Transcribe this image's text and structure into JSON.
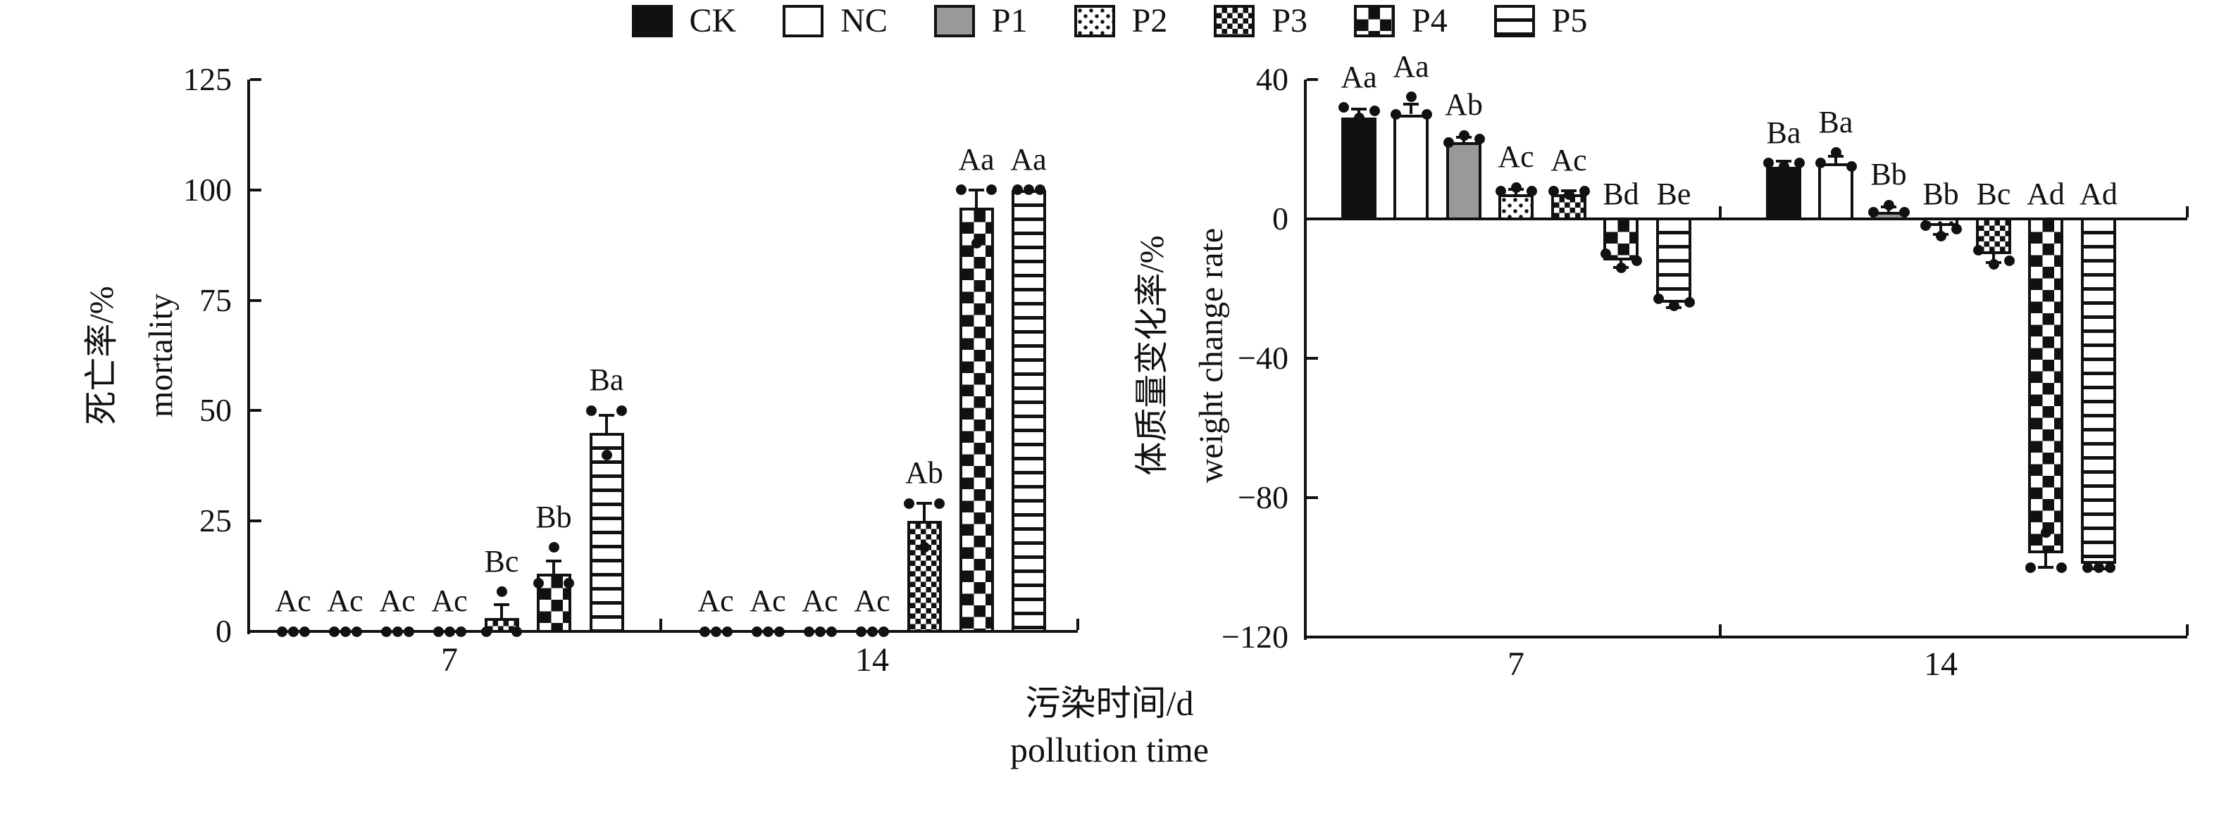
{
  "colors": {
    "ink": "#111111",
    "gray_fill": "#999999",
    "background": "#ffffff"
  },
  "legend": [
    {
      "label": "CK",
      "pattern": "solid-black"
    },
    {
      "label": "NC",
      "pattern": "white"
    },
    {
      "label": "P1",
      "pattern": "solid-gray"
    },
    {
      "label": "P2",
      "pattern": "dots"
    },
    {
      "label": "P3",
      "pattern": "checker-small"
    },
    {
      "label": "P4",
      "pattern": "checker-large"
    },
    {
      "label": "P5",
      "pattern": "hlines"
    }
  ],
  "xaxis": {
    "title_zh": "污染时间/d",
    "title_en": "pollution time"
  },
  "chart_data": [
    {
      "type": "bar",
      "ylabel_zh": "死亡率/%",
      "ylabel_en": "mortality",
      "ylim": [
        0,
        125
      ],
      "yticks": [
        0,
        25,
        50,
        75,
        100,
        125
      ],
      "ytick_labels": [
        "0",
        "25",
        "50",
        "75",
        "100",
        "125"
      ],
      "categories": [
        "7",
        "14"
      ],
      "grid": false,
      "legend_position": "top-center-shared",
      "series": [
        {
          "name": "CK",
          "pattern": "solid-black",
          "values": [
            0,
            0
          ],
          "err": [
            0,
            0
          ],
          "sig": [
            "Ac",
            "Ac"
          ],
          "points": [
            [
              0,
              0,
              0
            ],
            [
              0,
              0,
              0
            ]
          ]
        },
        {
          "name": "NC",
          "pattern": "white",
          "values": [
            0,
            0
          ],
          "err": [
            0,
            0
          ],
          "sig": [
            "Ac",
            "Ac"
          ],
          "points": [
            [
              0,
              0,
              0
            ],
            [
              0,
              0,
              0
            ]
          ]
        },
        {
          "name": "P1",
          "pattern": "solid-gray",
          "values": [
            0,
            0
          ],
          "err": [
            0,
            0
          ],
          "sig": [
            "Ac",
            "Ac"
          ],
          "points": [
            [
              0,
              0,
              0
            ],
            [
              0,
              0,
              0
            ]
          ]
        },
        {
          "name": "P2",
          "pattern": "dots",
          "values": [
            0,
            0
          ],
          "err": [
            0,
            0
          ],
          "sig": [
            "Ac",
            "Ac"
          ],
          "points": [
            [
              0,
              0,
              0
            ],
            [
              0,
              0,
              0
            ]
          ]
        },
        {
          "name": "P3",
          "pattern": "checker-small",
          "values": [
            3,
            25
          ],
          "err": [
            3,
            4
          ],
          "sig": [
            "Bc",
            "Ab"
          ],
          "points": [
            [
              0,
              0,
              9
            ],
            [
              29,
              29,
              19
            ]
          ]
        },
        {
          "name": "P4",
          "pattern": "checker-large",
          "values": [
            13,
            96
          ],
          "err": [
            3,
            4
          ],
          "sig": [
            "Bb",
            "Aa"
          ],
          "points": [
            [
              11,
              11,
              19
            ],
            [
              100,
              100,
              88
            ]
          ]
        },
        {
          "name": "P5",
          "pattern": "hlines",
          "values": [
            45,
            100
          ],
          "err": [
            4,
            0
          ],
          "sig": [
            "Ba",
            "Aa"
          ],
          "points": [
            [
              50,
              50,
              40
            ],
            [
              100,
              100,
              100
            ]
          ]
        }
      ]
    },
    {
      "type": "bar",
      "ylabel_zh": "体质量变化率/%",
      "ylabel_en": "weight change rate",
      "ylim": [
        -120,
        40
      ],
      "yticks": [
        40,
        0,
        -40,
        -80,
        -120
      ],
      "ytick_labels": [
        "40",
        "0",
        "−40",
        "−80",
        "−120"
      ],
      "categories": [
        "7",
        "14"
      ],
      "grid": false,
      "legend_position": "top-center-shared",
      "series": [
        {
          "name": "CK",
          "pattern": "solid-black",
          "values": [
            29,
            15
          ],
          "err": [
            2.5,
            1.5
          ],
          "sig": [
            "Aa",
            "Ba"
          ],
          "points": [
            [
              32,
              31,
              29
            ],
            [
              16,
              16,
              15
            ]
          ]
        },
        {
          "name": "NC",
          "pattern": "white",
          "values": [
            30,
            16
          ],
          "err": [
            3,
            2
          ],
          "sig": [
            "Aa",
            "Ba"
          ],
          "points": [
            [
              30,
              30,
              35
            ],
            [
              16,
              15,
              19
            ]
          ]
        },
        {
          "name": "P1",
          "pattern": "solid-gray",
          "values": [
            22,
            2
          ],
          "err": [
            1.5,
            1.5
          ],
          "sig": [
            "Ab",
            "Bb"
          ],
          "points": [
            [
              22,
              23,
              24
            ],
            [
              2,
              2,
              4
            ]
          ]
        },
        {
          "name": "P2",
          "pattern": "dots",
          "values": [
            7,
            -2
          ],
          "err": [
            1.5,
            2.5
          ],
          "sig": [
            "Ac",
            "Bb"
          ],
          "points": [
            [
              8,
              8,
              9
            ],
            [
              -2,
              -3,
              -5
            ]
          ]
        },
        {
          "name": "P3",
          "pattern": "checker-small",
          "values": [
            7,
            -10
          ],
          "err": [
            1,
            2.5
          ],
          "sig": [
            "Ac",
            "Bc"
          ],
          "points": [
            [
              8,
              8,
              7
            ],
            [
              -9,
              -12,
              -13
            ]
          ]
        },
        {
          "name": "P4",
          "pattern": "checker-large",
          "values": [
            -12,
            -96
          ],
          "err": [
            2,
            4
          ],
          "sig": [
            "Bd",
            "Ad"
          ],
          "points": [
            [
              -10,
              -12,
              -14
            ],
            [
              -100,
              -100,
              -90
            ]
          ]
        },
        {
          "name": "P5",
          "pattern": "hlines",
          "values": [
            -24,
            -99
          ],
          "err": [
            1.5,
            1.5
          ],
          "sig": [
            "Be",
            "Ad"
          ],
          "points": [
            [
              -23,
              -24,
              -25
            ],
            [
              -100,
              -100,
              -100
            ]
          ]
        }
      ]
    }
  ]
}
